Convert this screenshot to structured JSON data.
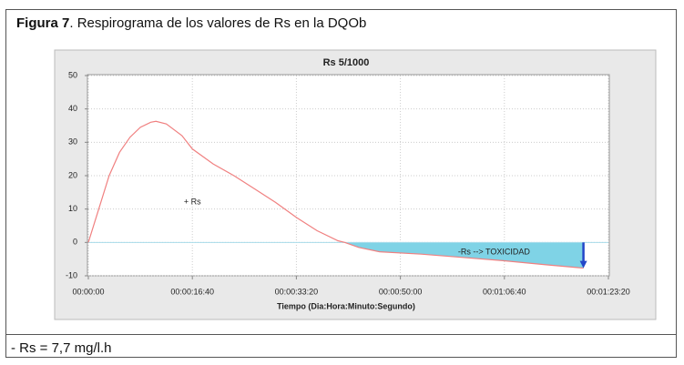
{
  "caption": {
    "label": "Figura 7",
    "text": ". Respirograma de los valores de Rs en la DQOb"
  },
  "note": "- Rs = 7,7 mg/l.h",
  "chart_data": {
    "type": "line",
    "title": "Rs 5/1000",
    "xlabel": "Tiempo (Dia:Hora:Minuto:Segundo)",
    "x": [
      0,
      100,
      200,
      300,
      400,
      500,
      600,
      650,
      750,
      900,
      1000,
      1200,
      1400,
      1600,
      1800,
      2000,
      2200,
      2400,
      2465,
      2600,
      2800,
      3200,
      3600,
      4000,
      4400,
      4760
    ],
    "values": [
      0,
      10,
      20,
      27,
      31.5,
      34.5,
      36,
      36.3,
      35.5,
      32,
      28,
      23.5,
      20,
      16,
      12,
      7.5,
      3.5,
      0.5,
      0,
      -1.5,
      -2.8,
      -3.5,
      -4.5,
      -5.5,
      -6.7,
      -7.7
    ],
    "color": "#f08080",
    "area_color": "#7fd3e6",
    "zero_line_color": "#a8dcea",
    "arrow_color": "#2346c8",
    "xlim": [
      0,
      5000
    ],
    "xticks": [
      {
        "value": 0,
        "label": "00:00:00"
      },
      {
        "value": 1000,
        "label": "00:00:16:40"
      },
      {
        "value": 2000,
        "label": "00:00:33:20"
      },
      {
        "value": 3000,
        "label": "00:00:50:00"
      },
      {
        "value": 4000,
        "label": "00:01:06:40"
      },
      {
        "value": 5000,
        "label": "00:01:23:20"
      }
    ],
    "ylim": [
      -10,
      50
    ],
    "yticks": [
      -10,
      0,
      10,
      20,
      30,
      40,
      50
    ],
    "grid": true,
    "annotations": [
      {
        "text": "+ Rs",
        "x": 1000,
        "y": 12
      },
      {
        "text": "-Rs --> TOXICIDAD",
        "x": 3900,
        "y": -3
      }
    ]
  }
}
